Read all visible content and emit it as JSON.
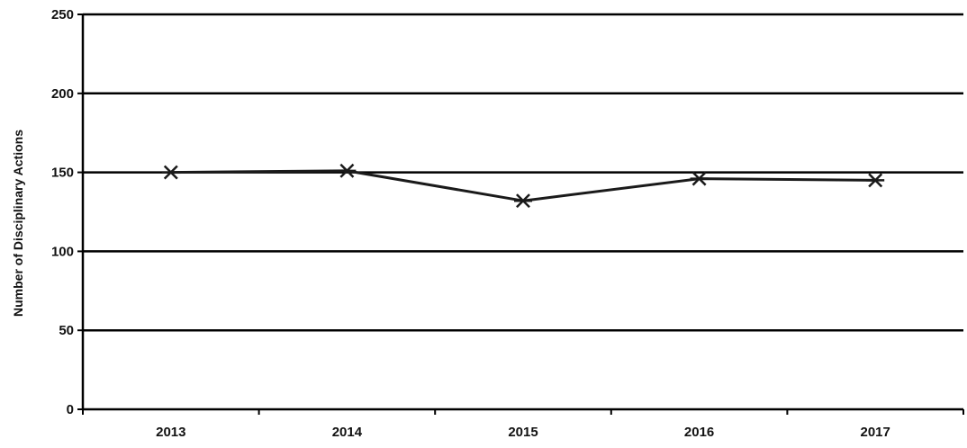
{
  "chart_data": {
    "type": "line",
    "title": "",
    "xlabel": "",
    "ylabel": "Number of Disciplinary Actions",
    "categories": [
      "2013",
      "2014",
      "2015",
      "2016",
      "2017"
    ],
    "series": [
      {
        "values": [
          150,
          151,
          132,
          146,
          145
        ],
        "marker": "asterisk"
      }
    ],
    "ylim": [
      0,
      250
    ],
    "yticks": [
      0,
      50,
      100,
      150,
      200,
      250
    ],
    "ytick_labels": [
      "0",
      "50",
      "100",
      "150",
      "200",
      "250"
    ],
    "grid": "horizontal",
    "legend": "none",
    "colors": {
      "line": "#1a1a1a",
      "grid": "#000000",
      "text": "#111111"
    }
  }
}
